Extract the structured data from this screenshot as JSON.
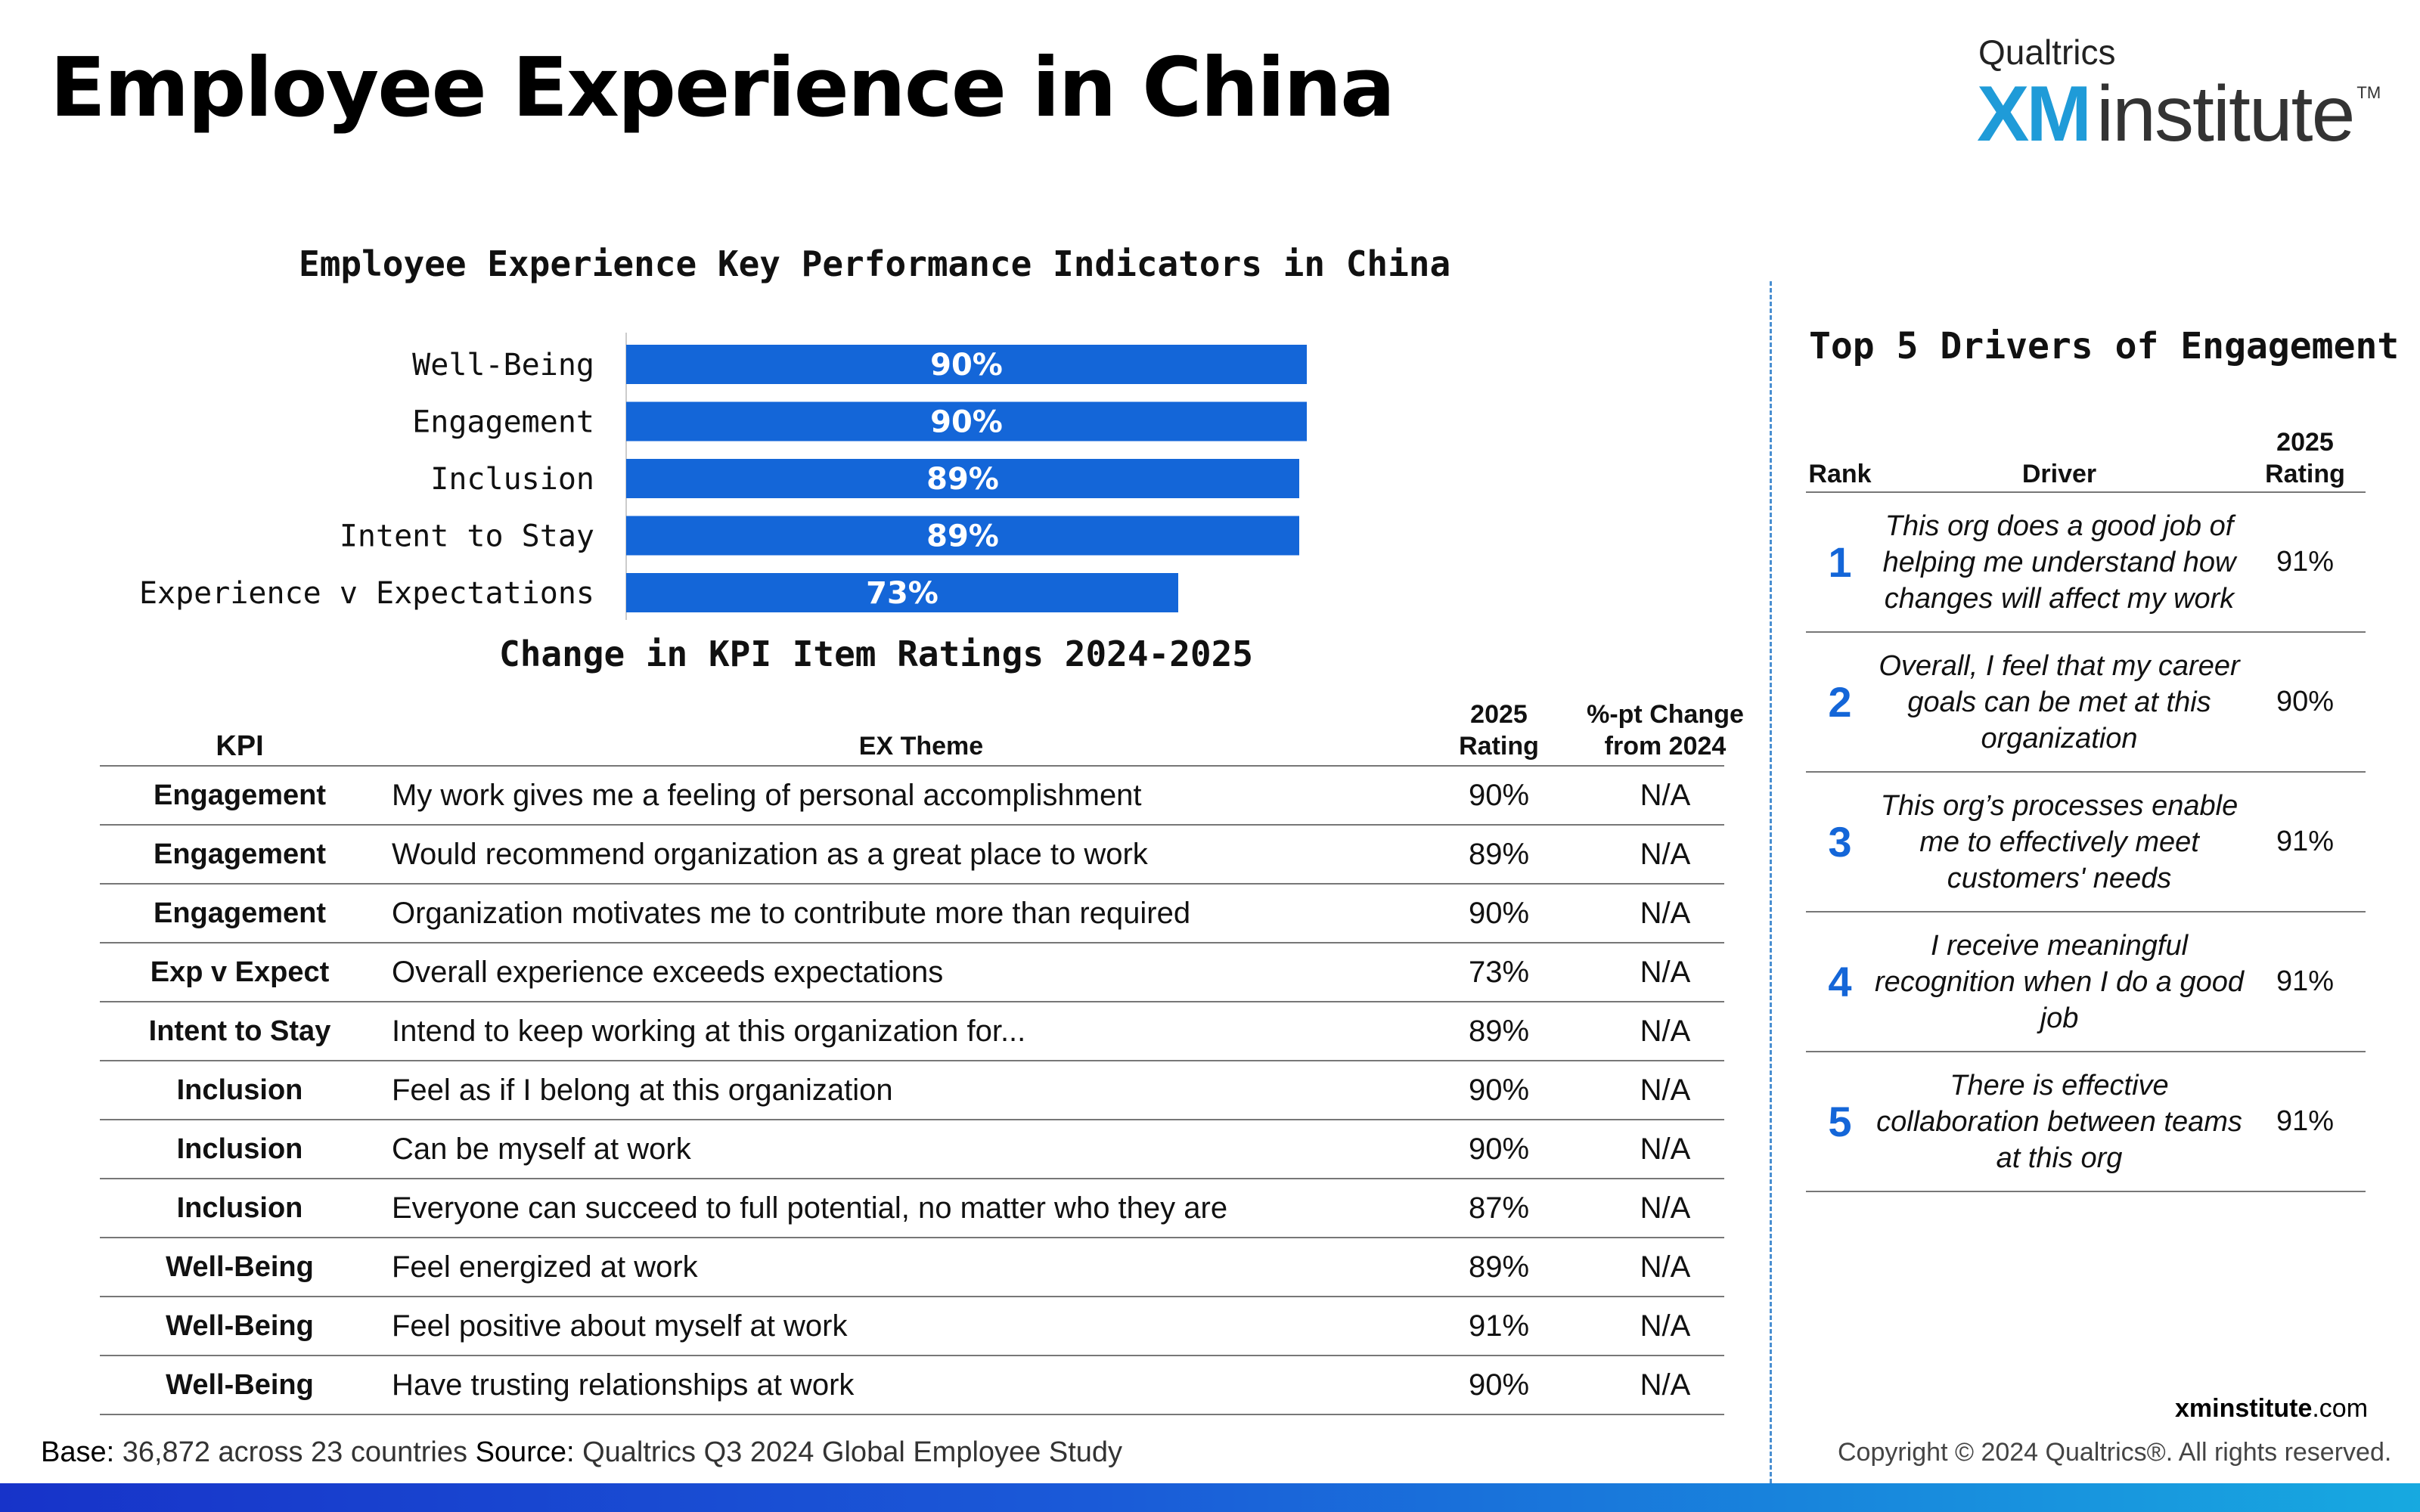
{
  "header": {
    "title": "Employee Experience in China",
    "logo_top": "Qualtrics",
    "logo_xm": "XM",
    "logo_institute": "institute",
    "logo_tm": "TM"
  },
  "chart_data": {
    "type": "bar",
    "orientation": "horizontal",
    "title": "Employee Experience Key Performance Indicators in China",
    "categories": [
      "Well-Being",
      "Engagement",
      "Inclusion",
      "Intent to Stay",
      "Experience v Expectations"
    ],
    "values": [
      90,
      90,
      89,
      89,
      73
    ],
    "value_labels": [
      "90%",
      "90%",
      "89%",
      "89%",
      "73%"
    ],
    "xlim": [
      0,
      100
    ],
    "bar_color": "#1466d8",
    "grid": false
  },
  "kpi_table": {
    "title": "Change in KPI Item Ratings 2024-2025",
    "headers": {
      "kpi": "KPI",
      "theme": "EX Theme",
      "rating_line1": "2025",
      "rating_line2": "Rating",
      "change_line1": "%-pt Change",
      "change_line2": "from 2024"
    },
    "rows": [
      {
        "kpi": "Engagement",
        "theme": "My work gives me a feeling of personal accomplishment",
        "rating": "90%",
        "change": "N/A"
      },
      {
        "kpi": "Engagement",
        "theme": "Would recommend organization as a great place to work",
        "rating": "89%",
        "change": "N/A"
      },
      {
        "kpi": "Engagement",
        "theme": "Organization motivates me to contribute more than required",
        "rating": "90%",
        "change": "N/A"
      },
      {
        "kpi": "Exp v Expect",
        "theme": "Overall experience exceeds expectations",
        "rating": "73%",
        "change": "N/A"
      },
      {
        "kpi": "Intent to Stay",
        "theme": "Intend to keep working at this organization for...",
        "rating": "89%",
        "change": "N/A"
      },
      {
        "kpi": "Inclusion",
        "theme": "Feel as if I belong at this organization",
        "rating": "90%",
        "change": "N/A"
      },
      {
        "kpi": "Inclusion",
        "theme": "Can be myself at work",
        "rating": "90%",
        "change": "N/A"
      },
      {
        "kpi": "Inclusion",
        "theme": "Everyone can succeed to full potential, no matter who they are",
        "rating": "87%",
        "change": "N/A"
      },
      {
        "kpi": "Well-Being",
        "theme": "Feel energized at work",
        "rating": "89%",
        "change": "N/A"
      },
      {
        "kpi": "Well-Being",
        "theme": "Feel positive about myself at work",
        "rating": "91%",
        "change": "N/A"
      },
      {
        "kpi": "Well-Being",
        "theme": "Have trusting relationships at work",
        "rating": "90%",
        "change": "N/A"
      }
    ]
  },
  "drivers": {
    "title": "Top 5 Drivers of Engagement",
    "headers": {
      "rank": "Rank",
      "driver": "Driver",
      "rating_line1": "2025",
      "rating_line2": "Rating"
    },
    "rows": [
      {
        "rank": "1",
        "driver": "This org does a good job of helping me understand how changes will affect my work",
        "rating": "91%"
      },
      {
        "rank": "2",
        "driver": "Overall, I feel that my career goals can be met at this organization",
        "rating": "90%"
      },
      {
        "rank": "3",
        "driver": "This org’s processes enable me to effectively meet customers' needs",
        "rating": "91%"
      },
      {
        "rank": "4",
        "driver": "I receive meaningful recognition when I do a good job",
        "rating": "91%"
      },
      {
        "rank": "5",
        "driver": "There is effective collaboration between teams at this org",
        "rating": "91%"
      }
    ]
  },
  "footer": {
    "base_label": "Base:",
    "base_text": "36,872 across 23 countries",
    "source_label": "Source:",
    "source_text": "Qualtrics Q3 2024 Global Employee Study",
    "site_bold": "xminstitute",
    "site_rest": ".com",
    "copyright": "Copyright © 2024 Qualtrics®. All rights reserved."
  }
}
